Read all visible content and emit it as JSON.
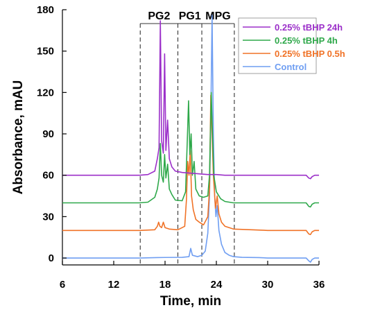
{
  "chart_data": {
    "type": "line",
    "xlabel": "Time, min",
    "ylabel": "Absorbance, mAU",
    "xlim": [
      6,
      36
    ],
    "ylim": [
      -5,
      180
    ],
    "xticks": [
      6,
      12,
      18,
      24,
      30,
      36
    ],
    "yticks": [
      0,
      30,
      60,
      90,
      120,
      150,
      180
    ],
    "grid": false,
    "legend_position": "top-right",
    "regions": [
      {
        "label": "PG2",
        "start": 15.1,
        "end": 19.5
      },
      {
        "label": "PG1",
        "start": 19.5,
        "end": 22.3
      },
      {
        "label": "MPG",
        "start": 22.3,
        "end": 26.1
      }
    ],
    "series": [
      {
        "name": "0.25% tBHP 24h",
        "color": "#9b2fc9",
        "baseline": 60,
        "points": [
          [
            6,
            60
          ],
          [
            15,
            60
          ],
          [
            16,
            60.5
          ],
          [
            16.8,
            63
          ],
          [
            17.1,
            72
          ],
          [
            17.3,
            80
          ],
          [
            17.45,
            172
          ],
          [
            17.6,
            85
          ],
          [
            17.8,
            76
          ],
          [
            17.95,
            148
          ],
          [
            18.1,
            78
          ],
          [
            18.3,
            100
          ],
          [
            18.5,
            72
          ],
          [
            18.8,
            66
          ],
          [
            19.2,
            63
          ],
          [
            20,
            62
          ],
          [
            21,
            61.5
          ],
          [
            22,
            61
          ],
          [
            23,
            60.5
          ],
          [
            24,
            60.5
          ],
          [
            25,
            60
          ],
          [
            30,
            60
          ],
          [
            34.5,
            60
          ],
          [
            34.8,
            58
          ],
          [
            35,
            57.5
          ],
          [
            35.2,
            59
          ],
          [
            35.5,
            60
          ],
          [
            36,
            60
          ]
        ]
      },
      {
        "name": "0.25% tBHP 4h",
        "color": "#2ea84a",
        "baseline": 40,
        "points": [
          [
            6,
            40
          ],
          [
            15,
            40
          ],
          [
            16,
            40.5
          ],
          [
            16.8,
            44
          ],
          [
            17.1,
            50
          ],
          [
            17.3,
            58
          ],
          [
            17.45,
            83
          ],
          [
            17.6,
            60
          ],
          [
            17.8,
            55
          ],
          [
            17.95,
            75
          ],
          [
            18.1,
            58
          ],
          [
            18.3,
            68
          ],
          [
            18.5,
            50
          ],
          [
            18.8,
            46
          ],
          [
            19.2,
            42
          ],
          [
            20,
            41.5
          ],
          [
            20.4,
            48
          ],
          [
            20.6,
            85
          ],
          [
            20.75,
            114
          ],
          [
            20.9,
            75
          ],
          [
            21.05,
            90
          ],
          [
            21.2,
            60
          ],
          [
            21.4,
            70
          ],
          [
            21.6,
            50
          ],
          [
            22,
            45
          ],
          [
            22.5,
            44
          ],
          [
            23,
            45
          ],
          [
            23.2,
            60
          ],
          [
            23.4,
            120
          ],
          [
            23.55,
            90
          ],
          [
            23.7,
            60
          ],
          [
            24,
            48
          ],
          [
            24.5,
            43
          ],
          [
            25,
            41
          ],
          [
            26,
            40
          ],
          [
            30,
            40
          ],
          [
            34.5,
            40
          ],
          [
            34.8,
            37.5
          ],
          [
            35,
            37
          ],
          [
            35.2,
            39
          ],
          [
            35.5,
            40
          ],
          [
            36,
            40
          ]
        ]
      },
      {
        "name": "0.25% tBHP 0.5h",
        "color": "#f07226",
        "baseline": 20,
        "points": [
          [
            6,
            20
          ],
          [
            15,
            20
          ],
          [
            16.8,
            20.5
          ],
          [
            17.1,
            23
          ],
          [
            17.25,
            26
          ],
          [
            17.4,
            23
          ],
          [
            17.6,
            22
          ],
          [
            17.8,
            26
          ],
          [
            18,
            22
          ],
          [
            18.5,
            21
          ],
          [
            19.5,
            20.5
          ],
          [
            20.3,
            23
          ],
          [
            20.5,
            42
          ],
          [
            20.65,
            70
          ],
          [
            20.8,
            60
          ],
          [
            20.95,
            78
          ],
          [
            21.1,
            45
          ],
          [
            21.3,
            35
          ],
          [
            21.6,
            28
          ],
          [
            22,
            26
          ],
          [
            22.5,
            24
          ],
          [
            23,
            30
          ],
          [
            23.2,
            50
          ],
          [
            23.35,
            118
          ],
          [
            23.5,
            90
          ],
          [
            23.65,
            60
          ],
          [
            23.9,
            36
          ],
          [
            24.1,
            45
          ],
          [
            24.3,
            32
          ],
          [
            24.6,
            26
          ],
          [
            25,
            23
          ],
          [
            26,
            21
          ],
          [
            30,
            20
          ],
          [
            34.5,
            20
          ],
          [
            34.8,
            17.5
          ],
          [
            35,
            17
          ],
          [
            35.2,
            19
          ],
          [
            35.5,
            20
          ],
          [
            36,
            20
          ]
        ]
      },
      {
        "name": "Control",
        "color": "#6f9ef2",
        "baseline": 0,
        "points": [
          [
            6,
            0
          ],
          [
            15,
            0
          ],
          [
            17,
            0.3
          ],
          [
            18,
            0.4
          ],
          [
            20,
            0.5
          ],
          [
            20.8,
            1
          ],
          [
            21,
            7
          ],
          [
            21.2,
            2
          ],
          [
            21.8,
            1
          ],
          [
            22.3,
            2
          ],
          [
            22.7,
            5
          ],
          [
            23,
            18
          ],
          [
            23.2,
            45
          ],
          [
            23.35,
            100
          ],
          [
            23.5,
            176
          ],
          [
            23.65,
            90
          ],
          [
            23.8,
            45
          ],
          [
            23.95,
            30
          ],
          [
            24.1,
            38
          ],
          [
            24.3,
            20
          ],
          [
            24.6,
            10
          ],
          [
            25,
            4
          ],
          [
            25.5,
            2
          ],
          [
            26,
            1
          ],
          [
            27,
            0.5
          ],
          [
            29,
            0.3
          ],
          [
            30,
            0
          ],
          [
            34.5,
            0
          ],
          [
            34.8,
            -2
          ],
          [
            35,
            -3
          ],
          [
            35.2,
            -1
          ],
          [
            35.5,
            0
          ],
          [
            36,
            0
          ]
        ]
      }
    ]
  }
}
